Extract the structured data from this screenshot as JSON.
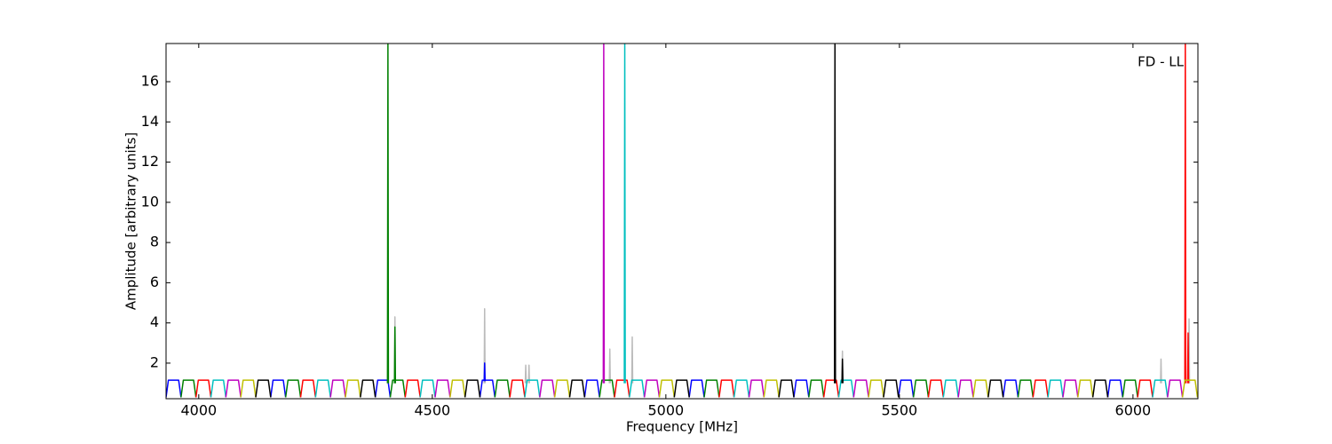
{
  "chart_data": {
    "type": "line",
    "xlabel": "Frequency [MHz]",
    "ylabel": "Amplitude [arbitrary units]",
    "annotation": "FD - LL",
    "xlim": [
      3930,
      6139
    ],
    "ylim": [
      0.23,
      17.9
    ],
    "xticks": [
      4000,
      4500,
      5000,
      5500,
      6000
    ],
    "yticks": [
      2,
      4,
      6,
      8,
      10,
      12,
      14,
      16
    ],
    "series": [
      {
        "color": "#bbbbbb",
        "x": [
          4419,
          4420,
          4421,
          4421,
          4611,
          4612,
          4613,
          4613,
          4699,
          4700,
          4701,
          4701,
          4706,
          4707,
          4708,
          4708,
          4879,
          4880,
          4881,
          4881,
          4927,
          4928,
          4929,
          4929,
          5377,
          5378,
          5379,
          5379,
          6059,
          6060,
          6061,
          6061,
          6119,
          6120,
          6121
        ],
        "values": [
          1,
          4.3,
          1,
          null,
          1,
          4.7,
          1,
          null,
          1,
          1.9,
          1,
          null,
          1,
          1.9,
          1,
          null,
          1,
          2.7,
          1,
          null,
          1,
          3.3,
          1,
          null,
          1,
          2.6,
          1,
          null,
          1,
          2.2,
          1,
          null,
          1,
          4.2,
          1
        ]
      },
      {
        "color": "#0000ff",
        "x": [
          3930,
          3935,
          3957,
          3962,
          3962,
          4154,
          4159,
          4181,
          4186,
          4186,
          4378,
          4383,
          4405,
          4410,
          4410,
          4602,
          4607,
          4629,
          4634,
          4634,
          4826,
          4831,
          4853,
          4858,
          4858,
          5050,
          5055,
          5077,
          5082,
          5082,
          5274,
          5279,
          5301,
          5306,
          5306,
          5498,
          5503,
          5525,
          5530,
          5530,
          5722,
          5727,
          5749,
          5754,
          5754,
          5946,
          5951,
          5973,
          5978,
          5978,
          4611,
          4612,
          4613
        ],
        "values": [
          0.3,
          1.15,
          1.15,
          0.3,
          null,
          0.3,
          1.15,
          1.15,
          0.3,
          null,
          0.3,
          1.15,
          1.15,
          0.3,
          null,
          0.3,
          1.15,
          1.15,
          0.3,
          null,
          0.3,
          1.15,
          1.15,
          0.3,
          null,
          0.3,
          1.15,
          1.15,
          0.3,
          null,
          0.3,
          1.15,
          1.15,
          0.3,
          null,
          0.3,
          1.15,
          1.15,
          0.3,
          null,
          0.3,
          1.15,
          1.15,
          0.3,
          null,
          0.3,
          1.15,
          1.15,
          0.3,
          null,
          1.1,
          2.0,
          1.1
        ]
      },
      {
        "color": "#008000",
        "x": [
          3962,
          3967,
          3989,
          3994,
          3994,
          4186,
          4191,
          4213,
          4218,
          4218,
          4410,
          4415,
          4437,
          4442,
          4442,
          4634,
          4639,
          4661,
          4666,
          4666,
          4858,
          4863,
          4885,
          4890,
          4890,
          5082,
          5087,
          5109,
          5114,
          5114,
          5306,
          5311,
          5333,
          5338,
          5338,
          5530,
          5535,
          5557,
          5562,
          5562,
          5754,
          5759,
          5781,
          5786,
          5786,
          5978,
          5983,
          6005,
          6010,
          6010,
          4404,
          4405,
          4406,
          4406,
          4419,
          4420,
          4421
        ],
        "values": [
          0.3,
          1.15,
          1.15,
          0.3,
          null,
          0.3,
          1.15,
          1.15,
          0.3,
          null,
          0.3,
          1.15,
          1.15,
          0.3,
          null,
          0.3,
          1.15,
          1.15,
          0.3,
          null,
          0.3,
          1.15,
          1.15,
          0.3,
          null,
          0.3,
          1.15,
          1.15,
          0.3,
          null,
          0.3,
          1.15,
          1.15,
          0.3,
          null,
          0.3,
          1.15,
          1.15,
          0.3,
          null,
          0.3,
          1.15,
          1.15,
          0.3,
          null,
          0.3,
          1.15,
          1.15,
          0.3,
          null,
          1,
          17.9,
          1,
          null,
          1,
          3.8,
          1
        ]
      },
      {
        "color": "#ff0000",
        "x": [
          3994,
          3999,
          4021,
          4026,
          4026,
          4218,
          4223,
          4245,
          4250,
          4250,
          4442,
          4447,
          4469,
          4474,
          4474,
          4666,
          4671,
          4693,
          4698,
          4698,
          4890,
          4895,
          4917,
          4922,
          4922,
          5114,
          5119,
          5141,
          5146,
          5146,
          5338,
          5343,
          5365,
          5370,
          5370,
          5562,
          5567,
          5589,
          5594,
          5594,
          5786,
          5791,
          5813,
          5818,
          5818,
          6010,
          6015,
          6037,
          6042,
          6042,
          6111,
          6112,
          6113,
          6113,
          6117,
          6118,
          6119
        ],
        "values": [
          0.3,
          1.15,
          1.15,
          0.3,
          null,
          0.3,
          1.15,
          1.15,
          0.3,
          null,
          0.3,
          1.15,
          1.15,
          0.3,
          null,
          0.3,
          1.15,
          1.15,
          0.3,
          null,
          0.3,
          1.15,
          1.15,
          0.3,
          null,
          0.3,
          1.15,
          1.15,
          0.3,
          null,
          0.3,
          1.15,
          1.15,
          0.3,
          null,
          0.3,
          1.15,
          1.15,
          0.3,
          null,
          0.3,
          1.15,
          1.15,
          0.3,
          null,
          0.3,
          1.15,
          1.15,
          0.3,
          null,
          1,
          17.9,
          1,
          null,
          1,
          3.5,
          1
        ]
      },
      {
        "color": "#00bfbf",
        "x": [
          4026,
          4031,
          4053,
          4058,
          4058,
          4250,
          4255,
          4277,
          4282,
          4282,
          4474,
          4479,
          4501,
          4506,
          4506,
          4698,
          4703,
          4725,
          4730,
          4730,
          4922,
          4927,
          4949,
          4954,
          4954,
          5146,
          5151,
          5173,
          5178,
          5178,
          5370,
          5375,
          5397,
          5402,
          5402,
          5594,
          5599,
          5621,
          5626,
          5626,
          5818,
          5823,
          5845,
          5850,
          5850,
          6042,
          6047,
          6069,
          6074,
          6074,
          4911,
          4912,
          4913
        ],
        "values": [
          0.3,
          1.15,
          1.15,
          0.3,
          null,
          0.3,
          1.15,
          1.15,
          0.3,
          null,
          0.3,
          1.15,
          1.15,
          0.3,
          null,
          0.3,
          1.15,
          1.15,
          0.3,
          null,
          0.3,
          1.15,
          1.15,
          0.3,
          null,
          0.3,
          1.15,
          1.15,
          0.3,
          null,
          0.3,
          1.15,
          1.15,
          0.3,
          null,
          0.3,
          1.15,
          1.15,
          0.3,
          null,
          0.3,
          1.15,
          1.15,
          0.3,
          null,
          0.3,
          1.15,
          1.15,
          0.3,
          null,
          1,
          17.9,
          1
        ]
      },
      {
        "color": "#bf00bf",
        "x": [
          4058,
          4063,
          4085,
          4090,
          4090,
          4282,
          4287,
          4309,
          4314,
          4314,
          4506,
          4511,
          4533,
          4538,
          4538,
          4730,
          4735,
          4757,
          4762,
          4762,
          4954,
          4959,
          4981,
          4986,
          4986,
          5178,
          5183,
          5205,
          5210,
          5210,
          5402,
          5407,
          5429,
          5434,
          5434,
          5626,
          5631,
          5653,
          5658,
          5658,
          5850,
          5855,
          5877,
          5882,
          5882,
          6074,
          6079,
          6101,
          6106,
          6106,
          4866,
          4867,
          4868
        ],
        "values": [
          0.3,
          1.15,
          1.15,
          0.3,
          null,
          0.3,
          1.15,
          1.15,
          0.3,
          null,
          0.3,
          1.15,
          1.15,
          0.3,
          null,
          0.3,
          1.15,
          1.15,
          0.3,
          null,
          0.3,
          1.15,
          1.15,
          0.3,
          null,
          0.3,
          1.15,
          1.15,
          0.3,
          null,
          0.3,
          1.15,
          1.15,
          0.3,
          null,
          0.3,
          1.15,
          1.15,
          0.3,
          null,
          0.3,
          1.15,
          1.15,
          0.3,
          null,
          0.3,
          1.15,
          1.15,
          0.3,
          null,
          1,
          17.9,
          1
        ]
      },
      {
        "color": "#bfbf00",
        "x": [
          4090,
          4095,
          4117,
          4122,
          4122,
          4314,
          4319,
          4341,
          4346,
          4346,
          4538,
          4543,
          4565,
          4570,
          4570,
          4762,
          4767,
          4789,
          4794,
          4794,
          4986,
          4991,
          5013,
          5018,
          5018,
          5210,
          5215,
          5237,
          5242,
          5242,
          5434,
          5439,
          5461,
          5466,
          5466,
          5658,
          5663,
          5685,
          5690,
          5690,
          5882,
          5887,
          5909,
          5914,
          5914,
          6106,
          6111,
          6133,
          6138
        ],
        "values": [
          0.3,
          1.15,
          1.15,
          0.3,
          null,
          0.3,
          1.15,
          1.15,
          0.3,
          null,
          0.3,
          1.15,
          1.15,
          0.3,
          null,
          0.3,
          1.15,
          1.15,
          0.3,
          null,
          0.3,
          1.15,
          1.15,
          0.3,
          null,
          0.3,
          1.15,
          1.15,
          0.3,
          null,
          0.3,
          1.15,
          1.15,
          0.3,
          null,
          0.3,
          1.15,
          1.15,
          0.3,
          null,
          0.3,
          1.15,
          1.15,
          0.3,
          null,
          0.3,
          1.15,
          1.15,
          0.3
        ]
      },
      {
        "color": "#000000",
        "x": [
          4122,
          4127,
          4149,
          4154,
          4154,
          4346,
          4351,
          4373,
          4378,
          4378,
          4570,
          4575,
          4597,
          4602,
          4602,
          4794,
          4799,
          4821,
          4826,
          4826,
          5018,
          5023,
          5045,
          5050,
          5050,
          5242,
          5247,
          5269,
          5274,
          5274,
          5466,
          5471,
          5493,
          5498,
          5498,
          5690,
          5695,
          5717,
          5722,
          5722,
          5914,
          5919,
          5941,
          5946,
          5946,
          5361,
          5362,
          5363,
          5363,
          5377,
          5378,
          5379
        ],
        "values": [
          0.3,
          1.15,
          1.15,
          0.3,
          null,
          0.3,
          1.15,
          1.15,
          0.3,
          null,
          0.3,
          1.15,
          1.15,
          0.3,
          null,
          0.3,
          1.15,
          1.15,
          0.3,
          null,
          0.3,
          1.15,
          1.15,
          0.3,
          null,
          0.3,
          1.15,
          1.15,
          0.3,
          null,
          0.3,
          1.15,
          1.15,
          0.3,
          null,
          0.3,
          1.15,
          1.15,
          0.3,
          null,
          0.3,
          1.15,
          1.15,
          0.3,
          null,
          1,
          17.9,
          1,
          null,
          1,
          2.2,
          1
        ]
      }
    ]
  }
}
